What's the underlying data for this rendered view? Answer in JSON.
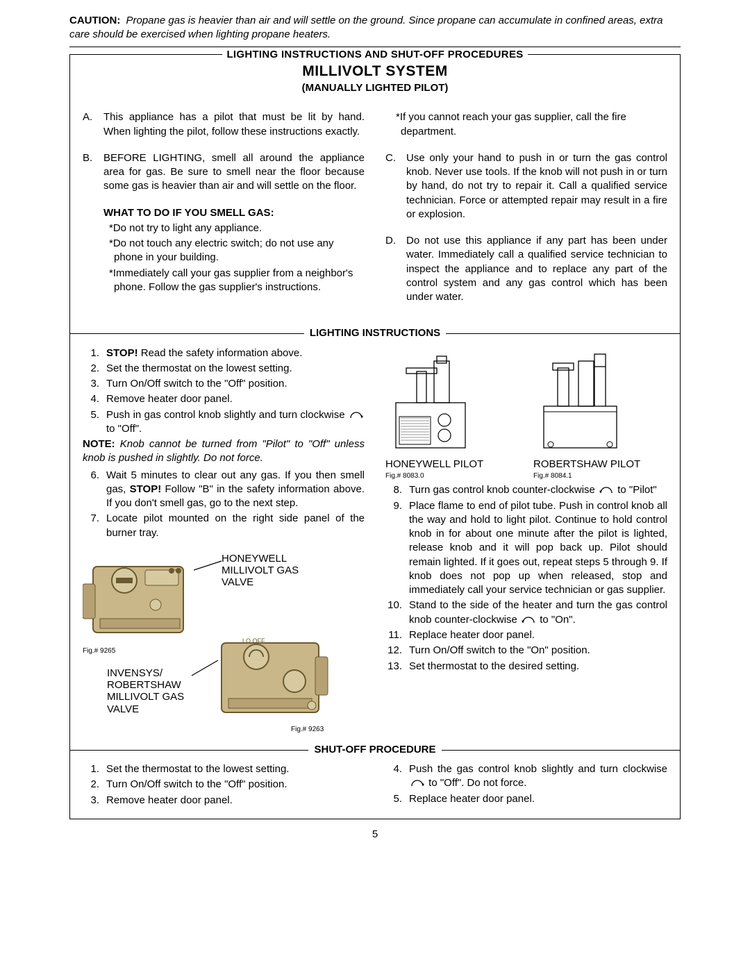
{
  "caution_label": "CAUTION:",
  "caution_text": "Propane gas is heavier than air and will settle on the ground.   Since propane can accumulate in confined areas, extra care should be exercised when lighting propane heaters.",
  "header_line": "LIGHTING INSTRUCTIONS AND SHUT-OFF PROCEDURES",
  "big_title": "MILLIVOLT SYSTEM",
  "sub_title": "(MANUALLY LIGHTED PILOT)",
  "safety": {
    "left": [
      {
        "mk": "A.",
        "tx": "This appliance has a pilot that must be lit by hand.  When lighting the pilot, follow these instructions exactly."
      },
      {
        "mk": "B.",
        "tx": "BEFORE LIGHTING, smell all around the appliance area for gas.  Be sure to smell near the floor because some gas is heavier than air and will settle on the floor."
      }
    ],
    "smell_heading": "WHAT TO DO IF YOU SMELL GAS:",
    "smell_bullets": [
      "*Do not try to light any appliance.",
      "*Do not touch any electric switch; do not use any phone in your building.",
      "*Immediately call your gas supplier from a neighbor's phone.  Follow the gas supplier's instructions."
    ],
    "right_star": "*If you cannot reach your gas supplier, call the fire department.",
    "right": [
      {
        "mk": "C.",
        "tx": "Use only your hand to push in or turn the gas control knob.  Never use tools.  If the knob will not push in or turn by hand, do not try to repair it.  Call a qualified service technician.  Force or attempted repair may result in a fire or explosion."
      },
      {
        "mk": "D.",
        "tx": "Do not use this appliance if any part has been under water.  Immediately call a qualified service technician to inspect the appliance and to replace any part of the control system and any gas control which has been under water."
      }
    ]
  },
  "lighting_hdr": "LIGHTING INSTRUCTIONS",
  "lighting_left": [
    {
      "mk": "1.",
      "tx": "<b>STOP!</b>  Read the safety information above."
    },
    {
      "mk": "2.",
      "tx": "Set the thermostat on the lowest setting."
    },
    {
      "mk": "3.",
      "tx": "Turn On/Off switch to the \"Off\" position."
    },
    {
      "mk": "4.",
      "tx": "Remove heater door panel."
    },
    {
      "mk": "5.",
      "tx": "Push in gas control knob slightly and turn clockwise <span class='rot-arrow'><svg width='24' height='16' viewBox='0 0 24 16'><path d='M4 12 A8 8 0 0 1 20 12' fill='none' stroke='#000' stroke-width='1.3'/><path d='M20 12 l-2 -4 l4 1 z' fill='#000'/></svg></span> to \"Off\"."
    }
  ],
  "note1": "<b>NOTE:</b> Knob cannot be turned from \"Pilot\" to \"Off\" unless knob is pushed in slightly.  Do not force.",
  "lighting_left2": [
    {
      "mk": "6.",
      "tx": "Wait 5 minutes to clear out any gas. If you then smell gas, <b>STOP!</b>  Follow \"B\" in the safety information above. If you don't smell gas, go to the next step."
    },
    {
      "mk": "7.",
      "tx": "Locate pilot mounted on the right side panel of the burner tray."
    }
  ],
  "valve_labels": {
    "honeywell": "HONEYWELL MILLIVOLT GAS VALVE",
    "invensys": "INVENSYS/ ROBERTSHAW MILLIVOLT GAS VALVE",
    "fig9265": "Fig.# 9265",
    "fig9263": "Fig.# 9263"
  },
  "pilot_figs": {
    "honeywell": "HONEYWELL PILOT",
    "robertshaw": "ROBERTSHAW PILOT",
    "fig8083": "Fig.# 8083.0",
    "fig8084": "Fig.# 8084.1"
  },
  "lighting_right": [
    {
      "mk": "8.",
      "tx": "Turn gas control knob counter-clockwise <span class='rot-arrow'><svg width='24' height='16' viewBox='0 0 24 16'><path d='M20 12 A8 8 0 0 0 4 12' fill='none' stroke='#000' stroke-width='1.3'/><path d='M4 12 l2 -4 l-4 1 z' fill='#000'/></svg></span> to \"Pilot\""
    },
    {
      "mk": "9.",
      "tx": "Place flame to end of pilot tube.  Push in control knob all the way and hold to light pilot.  Continue to hold control knob in for about one minute after the pilot is lighted, release knob and it will pop back up.  Pilot should remain lighted. If it goes out, repeat steps 5 through 9.  If knob does not pop up when released, stop and immediately call your service technician or gas supplier."
    },
    {
      "mk": "10.",
      "tx": "Stand to the side of the heater and turn the gas control knob counter-clockwise <span class='rot-arrow'><svg width='24' height='16' viewBox='0 0 24 16'><path d='M20 12 A8 8 0 0 0 4 12' fill='none' stroke='#000' stroke-width='1.3'/><path d='M4 12 l2 -4 l-4 1 z' fill='#000'/></svg></span> to \"On\"."
    },
    {
      "mk": "11.",
      "tx": "Replace heater door panel."
    },
    {
      "mk": "12.",
      "tx": "Turn On/Off switch to the \"On\" position."
    },
    {
      "mk": "13.",
      "tx": "Set thermostat to the desired setting."
    }
  ],
  "shutoff_hdr": "SHUT-OFF PROCEDURE",
  "shutoff_left": [
    {
      "mk": "1.",
      "tx": "Set the thermostat to the lowest setting."
    },
    {
      "mk": "2.",
      "tx": "Turn On/Off switch to the \"Off\" position."
    },
    {
      "mk": "3.",
      "tx": "Remove heater door panel."
    }
  ],
  "shutoff_right": [
    {
      "mk": "4.",
      "tx": "Push the gas control knob slightly and turn clockwise <span class='rot-arrow'><svg width='24' height='16' viewBox='0 0 24 16'><path d='M4 12 A8 8 0 0 1 20 12' fill='none' stroke='#000' stroke-width='1.3'/><path d='M20 12 l-2 -4 l4 1 z' fill='#000'/></svg></span> to \"Off\".  Do not force."
    },
    {
      "mk": "5.",
      "tx": "Replace heater door panel."
    }
  ],
  "page_number": "5",
  "colors": {
    "text": "#000000",
    "bg": "#ffffff",
    "valve_fill": "#c9b78a",
    "valve_stroke": "#6b5a2f"
  }
}
